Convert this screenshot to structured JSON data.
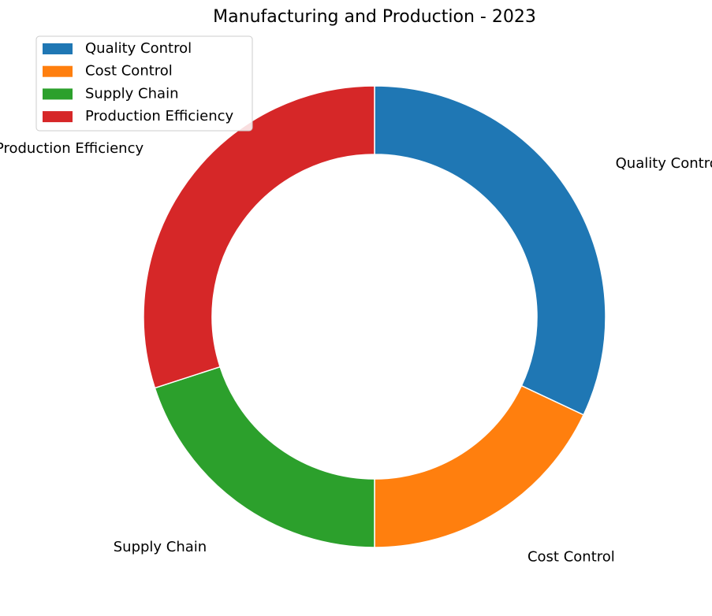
{
  "chart_data": {
    "type": "pie",
    "title": "Manufacturing and Production - 2023",
    "categories": [
      "Quality Control",
      "Cost Control",
      "Supply Chain",
      "Production Efficiency"
    ],
    "values": [
      32,
      18,
      20,
      30
    ],
    "colors": [
      "#1f77b4",
      "#ff7f0e",
      "#2ca02c",
      "#d62728"
    ],
    "donut": true,
    "start_angle_deg": 90,
    "direction": "clockwise",
    "legend": {
      "placement": "upper-left",
      "entries": [
        "Quality Control",
        "Cost Control",
        "Supply Chain",
        "Production Efficiency"
      ]
    }
  }
}
